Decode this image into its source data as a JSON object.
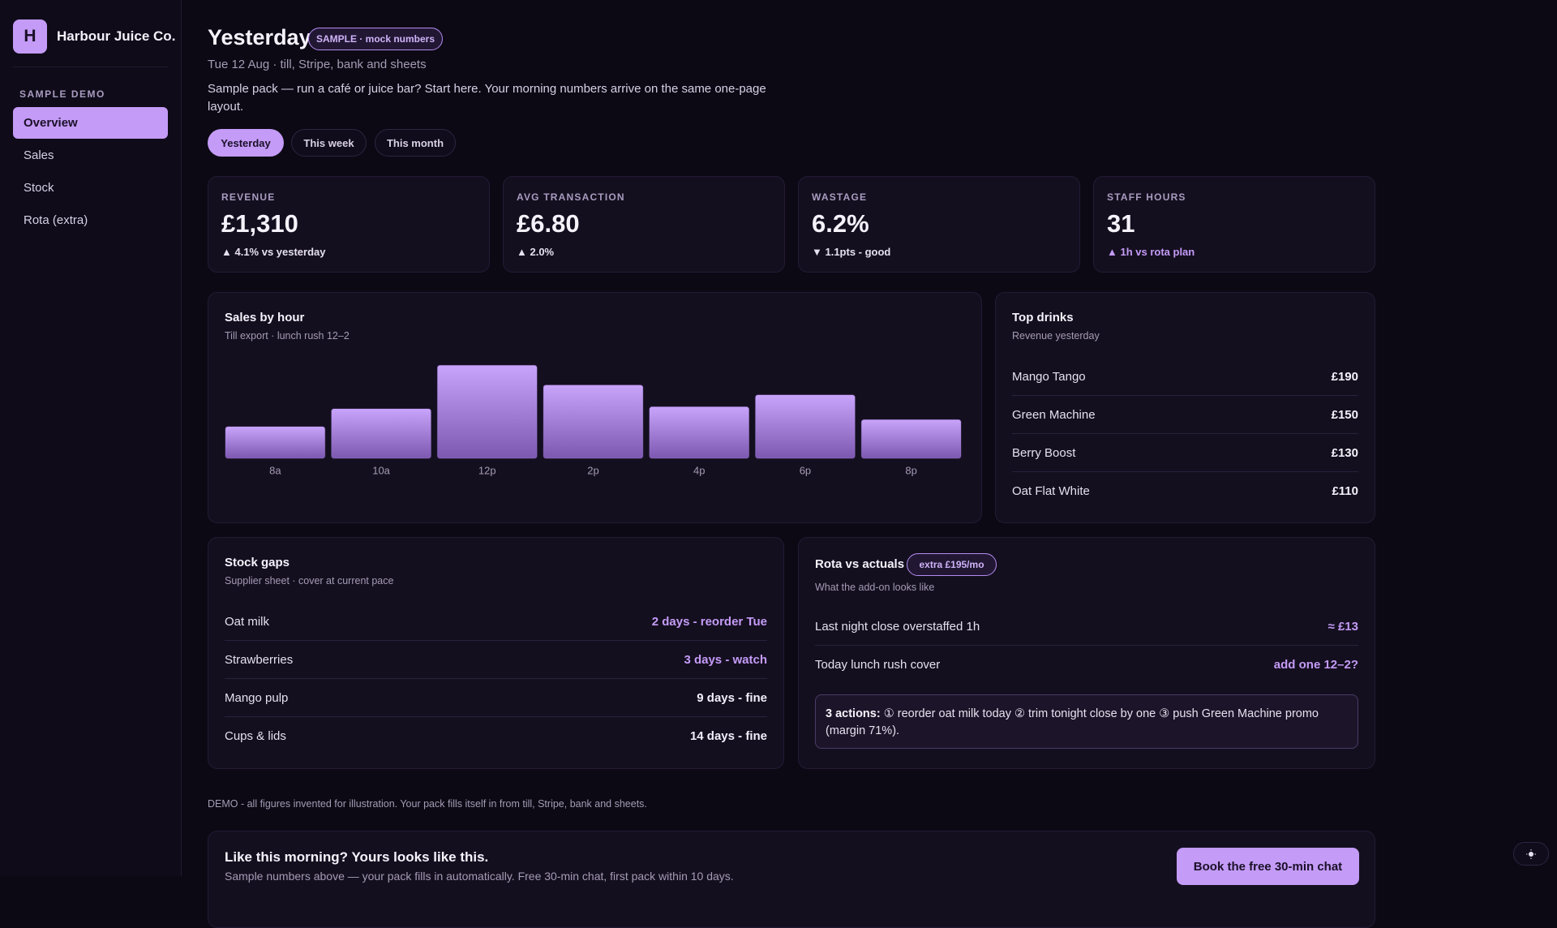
{
  "sidebar": {
    "logo": "H",
    "brand": "Harbour Juice Co.",
    "section": "SAMPLE DEMO",
    "nav": [
      "Overview",
      "Sales",
      "Stock",
      "Rota (extra)"
    ],
    "active": 0
  },
  "header": {
    "title": "Yesterday",
    "badge": "SAMPLE · mock numbers",
    "subtitle": "Tue 12 Aug · till, Stripe, bank and sheets",
    "description": "Sample pack — run a café or juice bar? Start here. Your morning numbers arrive on the same one-page layout."
  },
  "tabs": {
    "items": [
      "Yesterday",
      "This week",
      "This month"
    ],
    "active": 0
  },
  "kpis": [
    {
      "label": "REVENUE",
      "value": "£1,310",
      "delta": "▲ 4.1% vs yesterday",
      "color": "#e6e0f0"
    },
    {
      "label": "AVG TRANSACTION",
      "value": "£6.80",
      "delta": "▲ 2.0%",
      "color": "#e6e0f0"
    },
    {
      "label": "WASTAGE",
      "value": "6.2%",
      "delta": "▼ 1.1pts - good",
      "color": "#e6e0f0"
    },
    {
      "label": "STAFF HOURS",
      "value": "31",
      "delta": "▲ 1h vs rota plan",
      "color": "#c49bf7"
    }
  ],
  "chart_data": {
    "type": "bar",
    "title": "Sales by hour",
    "subtitle": "Till export · lunch rush 12–2",
    "categories": [
      "8a",
      "10a",
      "12p",
      "2p",
      "4p",
      "6p",
      "8p"
    ],
    "values": [
      32,
      50,
      94,
      74,
      52,
      64,
      39
    ],
    "ylim": [
      0,
      100
    ],
    "color": "#b48cf0"
  },
  "top_drinks": {
    "title": "Top drinks",
    "subtitle": "Revenue yesterday",
    "rows": [
      [
        "Mango Tango",
        "£190"
      ],
      [
        "Green Machine",
        "£150"
      ],
      [
        "Berry Boost",
        "£130"
      ],
      [
        "Oat Flat White",
        "£110"
      ]
    ]
  },
  "stock_gaps": {
    "title": "Stock gaps",
    "subtitle": "Supplier sheet · cover at current pace",
    "rows": [
      {
        "item": "Oat milk",
        "status": "2 days - reorder Tue",
        "color": "#c49bf7"
      },
      {
        "item": "Strawberries",
        "status": "3 days - watch",
        "color": "#c49bf7"
      },
      {
        "item": "Mango pulp",
        "status": "9 days - fine",
        "color": "#f2eefa"
      },
      {
        "item": "Cups & lids",
        "status": "14 days - fine",
        "color": "#f2eefa"
      }
    ]
  },
  "rota": {
    "title": "Rota vs actuals",
    "badge": "extra £195/mo",
    "subtitle": "What the add-on looks like",
    "rows": [
      [
        "Last night close overstaffed 1h",
        "≈ £13"
      ],
      [
        "Today lunch rush cover",
        "add one 12–2?"
      ]
    ],
    "actions_label": "3 actions:",
    "actions_text": "① reorder oat milk today ② trim tonight close by one ③ push Green Machine promo (margin 71%)."
  },
  "footer_note": "DEMO - all figures invented for illustration. Your pack fills itself in from till, Stripe, bank and sheets.",
  "cta": {
    "title": "Like this morning? Yours looks like this.",
    "subtitle": "Sample numbers above — your pack fills in automatically. Free 30-min chat, first pack within 10 days.",
    "button": "Book the free 30-min chat"
  }
}
